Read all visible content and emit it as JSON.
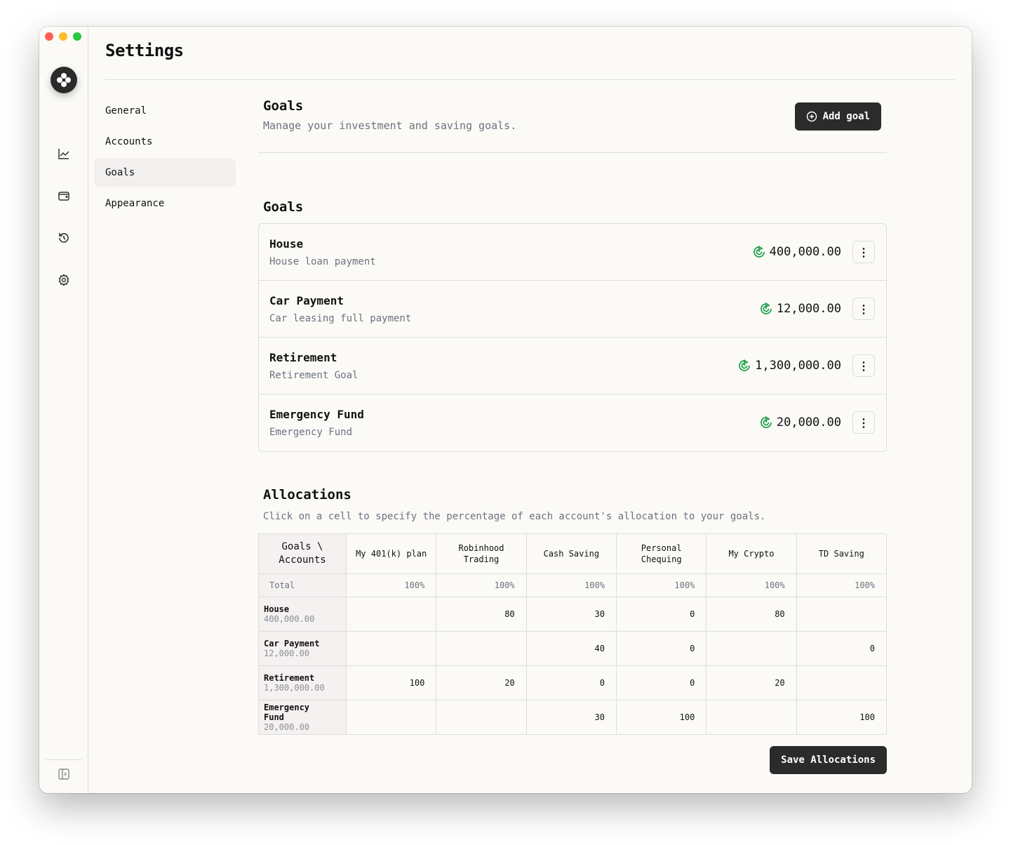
{
  "window": {
    "title": "Settings"
  },
  "rail": {
    "icons": [
      "logo-icon",
      "chart-icon",
      "wallet-icon",
      "history-icon",
      "gear-icon",
      "sidebar-toggle-icon"
    ]
  },
  "nav": [
    "General",
    "Accounts",
    "Goals",
    "Appearance"
  ],
  "active_nav": "Goals",
  "header": {
    "title": "Goals",
    "subtitle": "Manage your investment and saving goals.",
    "add_label": "Add goal"
  },
  "goals_section": {
    "title": "Goals"
  },
  "goals": [
    {
      "name": "House",
      "desc": "House loan payment",
      "amount": "400,000.00"
    },
    {
      "name": "Car Payment",
      "desc": "Car leasing full payment",
      "amount": "12,000.00"
    },
    {
      "name": "Retirement",
      "desc": "Retirement Goal",
      "amount": "1,300,000.00"
    },
    {
      "name": "Emergency Fund",
      "desc": "Emergency Fund",
      "amount": "20,000.00"
    }
  ],
  "allocations": {
    "title": "Allocations",
    "subtitle": "Click on a cell to specify the percentage of each account's allocation to your goals.",
    "corner_l1": "Goals \\",
    "corner_l2": "Accounts",
    "accounts": [
      "My 401(k) plan",
      "Robinhood Trading",
      "Cash Saving",
      "Personal Chequing",
      "My Crypto",
      "TD Saving"
    ],
    "total_label": "Total",
    "totals": [
      "100%",
      "100%",
      "100%",
      "100%",
      "100%",
      "100%"
    ],
    "rows": [
      {
        "name": "House",
        "amount": "400,000.00",
        "values": [
          "",
          "80",
          "30",
          "0",
          "80",
          ""
        ]
      },
      {
        "name": "Car Payment",
        "amount": "12,000.00",
        "values": [
          "",
          "",
          "40",
          "0",
          "",
          "0"
        ]
      },
      {
        "name": "Retirement",
        "amount": "1,300,000.00",
        "values": [
          "100",
          "20",
          "0",
          "0",
          "20",
          ""
        ]
      },
      {
        "name": "Emergency Fund",
        "amount": "20,000.00",
        "values": [
          "",
          "",
          "30",
          "100",
          "",
          "100"
        ]
      }
    ],
    "save_label": "Save Allocations"
  },
  "colors": {
    "accent": "#2b2b2b",
    "goal_icon": "#22a04b"
  }
}
